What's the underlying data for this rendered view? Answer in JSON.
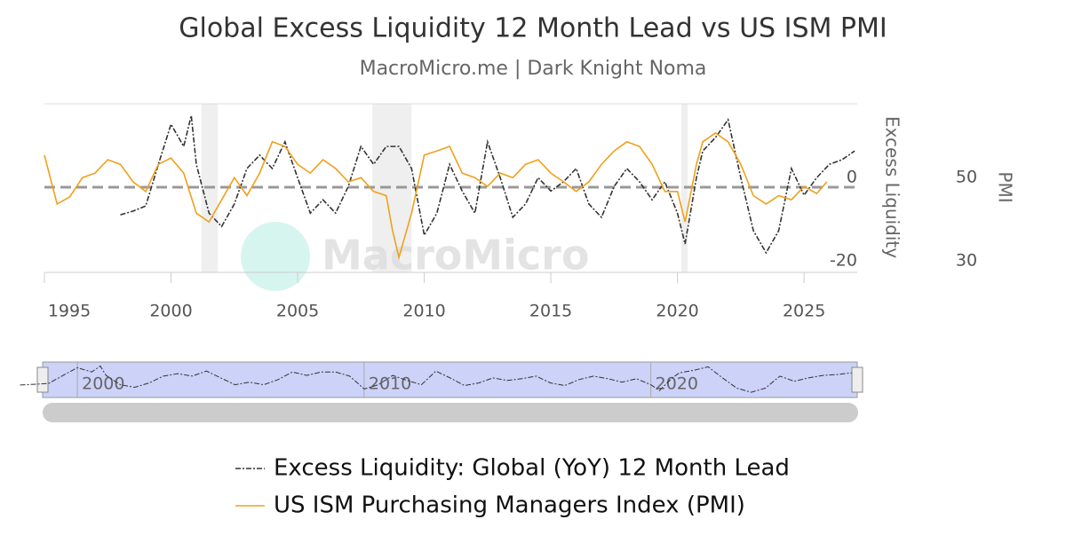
{
  "chart_data": {
    "type": "line",
    "title": "Global Excess Liquidity 12 Month Lead vs US ISM PMI",
    "subtitle": "MacroMicro.me | Dark Knight Noma",
    "watermark": "MacroMicro",
    "xlim": [
      1995,
      2027.1
    ],
    "xticks": [
      1995,
      2000,
      2005,
      2010,
      2015,
      2020,
      2025
    ],
    "ylim": [
      -20.4,
      20
    ],
    "yticks": [
      -20,
      0
    ],
    "y_label": "Excess Liquidity",
    "y2lim": [
      29.6,
      70
    ],
    "y2ticks": [
      30,
      50
    ],
    "y2_label": "PMI",
    "recessions": [
      [
        2001.2,
        2001.85
      ],
      [
        2007.95,
        2009.5
      ],
      [
        2020.15,
        2020.4
      ]
    ],
    "navigator": {
      "xlim": [
        1998.85,
        2027.2
      ],
      "xticks": [
        2000,
        2010,
        2020
      ]
    },
    "series": [
      {
        "name": "Excess Liquidity: Global (YoY) 12 Month Lead",
        "color": "#333333",
        "axis": "y",
        "dash": true,
        "x": [
          1998.0,
          1998.5,
          1999.0,
          1999.5,
          2000.0,
          2000.5,
          2000.8,
          2001.0,
          2001.5,
          2002.0,
          2002.5,
          2003.0,
          2003.5,
          2004.0,
          2004.5,
          2005.0,
          2005.5,
          2006.0,
          2006.5,
          2007.0,
          2007.5,
          2008.0,
          2008.5,
          2009.0,
          2009.5,
          2010.0,
          2010.5,
          2011.0,
          2011.5,
          2012.0,
          2012.5,
          2013.0,
          2013.5,
          2014.0,
          2014.5,
          2015.0,
          2015.5,
          2016.0,
          2016.5,
          2017.0,
          2017.5,
          2018.0,
          2018.5,
          2019.0,
          2019.5,
          2020.0,
          2020.3,
          2020.75,
          2021.0,
          2021.5,
          2022.0,
          2022.5,
          2023.0,
          2023.5,
          2024.0,
          2024.5,
          2025.0,
          2025.5,
          2026.0,
          2026.5,
          2027.0
        ],
        "values": [
          -6.6,
          -5.7,
          -4.5,
          5.5,
          15.1,
          9.8,
          17.2,
          5.5,
          -6.2,
          -9.4,
          -4,
          4.5,
          7.7,
          4.5,
          10.9,
          2.3,
          -6.2,
          -3,
          -6.2,
          0.2,
          9.8,
          5.5,
          9.8,
          9.8,
          4.5,
          -11.5,
          -6.2,
          5.5,
          -0.9,
          -6.2,
          10.9,
          2.3,
          -7.2,
          -4,
          2.3,
          -0.9,
          1.3,
          4.5,
          -4,
          -7.2,
          0.2,
          4.5,
          1.3,
          -3,
          1.3,
          -6.2,
          -13.6,
          2.3,
          8.7,
          11.9,
          16.2,
          2.3,
          -10.4,
          -15.7,
          -10.4,
          4.5,
          -1.9,
          2.3,
          5.5,
          6.6,
          8.7
        ]
      },
      {
        "name": "US ISM Purchasing Managers Index (PMI)",
        "color": "#f0a01a",
        "axis": "y2",
        "dash": false,
        "x": [
          1995.0,
          1995.5,
          1996.0,
          1996.5,
          1997.0,
          1997.5,
          1998.0,
          1998.5,
          1999.0,
          1999.5,
          2000.0,
          2000.5,
          2001.0,
          2001.5,
          2002.0,
          2002.5,
          2003.0,
          2003.5,
          2004.0,
          2004.5,
          2005.0,
          2005.5,
          2006.0,
          2006.5,
          2007.0,
          2007.5,
          2008.0,
          2008.5,
          2008.75,
          2009.0,
          2009.5,
          2010.0,
          2010.5,
          2011.0,
          2011.5,
          2012.0,
          2012.5,
          2013.0,
          2013.5,
          2014.0,
          2014.5,
          2015.0,
          2015.5,
          2016.0,
          2016.5,
          2017.0,
          2017.5,
          2018.0,
          2018.5,
          2019.0,
          2019.5,
          2020.0,
          2020.3,
          2020.75,
          2021.0,
          2021.5,
          2022.0,
          2022.5,
          2023.0,
          2023.5,
          2024.0,
          2024.5,
          2025.0,
          2025.5,
          2025.9
        ],
        "values": [
          57.7,
          46,
          47.7,
          52.3,
          53.4,
          56.6,
          55.5,
          51.3,
          49,
          55.5,
          57,
          53.4,
          43.8,
          41.7,
          47,
          52.3,
          48,
          53.4,
          60.9,
          59.8,
          55.5,
          53.4,
          56.6,
          54.5,
          51.3,
          52.3,
          49,
          48,
          39.6,
          33.2,
          43.8,
          57.7,
          58.7,
          59.8,
          53.4,
          52.3,
          50.2,
          53.4,
          52.3,
          55.5,
          56.6,
          53.4,
          51.3,
          49,
          51.3,
          55.5,
          58.7,
          60.9,
          59.8,
          55.5,
          49,
          49,
          41.7,
          55.5,
          60.9,
          63,
          60.9,
          55.5,
          48,
          46,
          48,
          47,
          50.2,
          48.5,
          51.3
        ]
      }
    ]
  }
}
